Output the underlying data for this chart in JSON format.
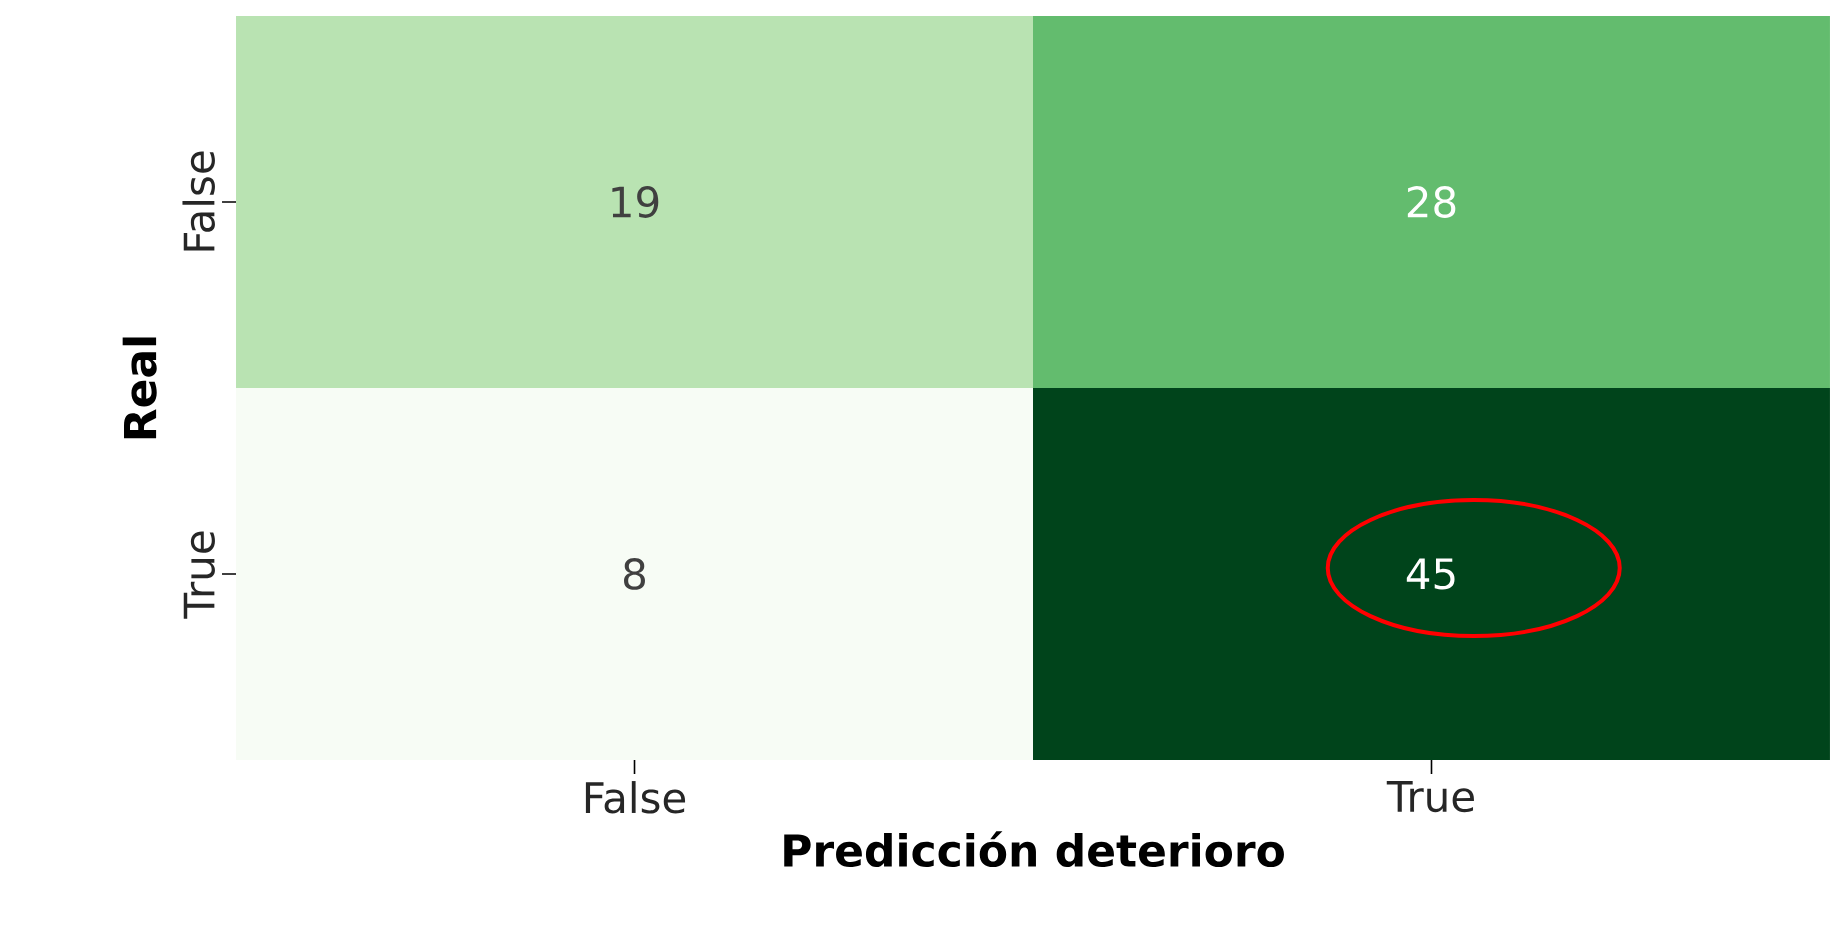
{
  "chart_data": {
    "type": "heatmap",
    "xlabel": "Predicción deterioro",
    "ylabel": "Real",
    "categories": [
      "False",
      "True"
    ],
    "y_categories": [
      "False",
      "True"
    ],
    "data_labels": true,
    "cells": [
      [
        19,
        28
      ],
      [
        8,
        45
      ]
    ]
  }
}
